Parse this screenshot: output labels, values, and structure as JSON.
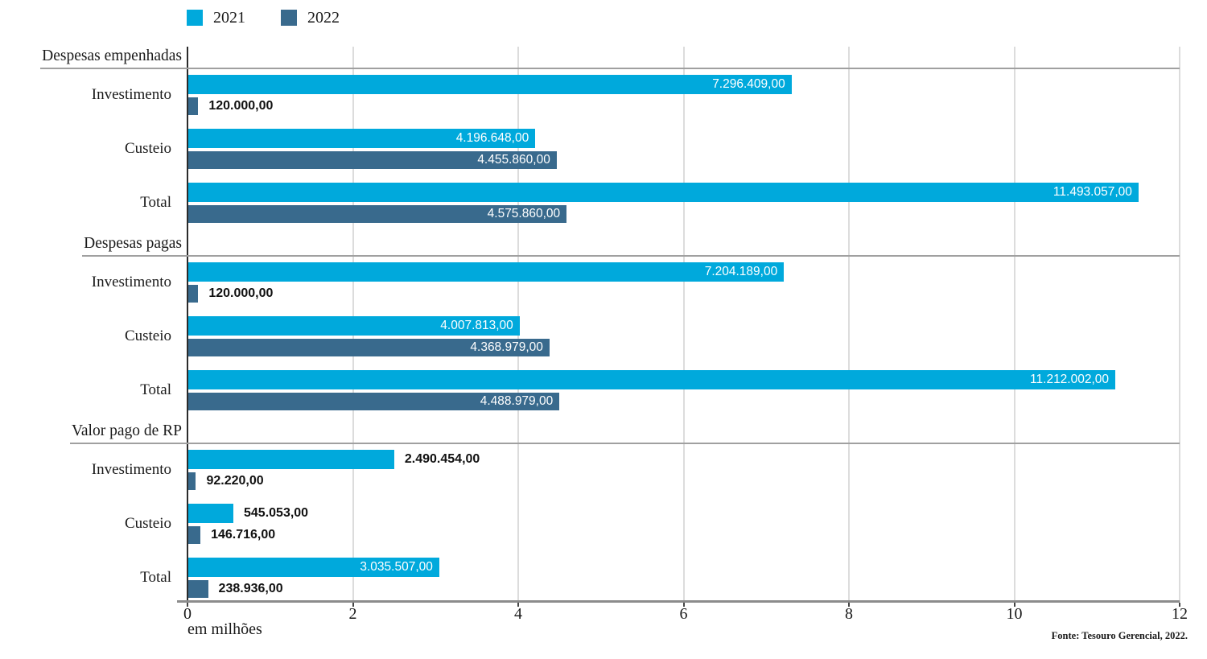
{
  "chart_data": {
    "type": "bar",
    "orientation": "horizontal",
    "legend_position": "top",
    "grid": true,
    "series": [
      {
        "name": "2021",
        "color": "#00A9DC"
      },
      {
        "name": "2022",
        "color": "#396A8D"
      }
    ],
    "x_axis": {
      "label": "em milhões",
      "ticks": [
        "0",
        "2",
        "4",
        "6",
        "8",
        "10",
        "12"
      ],
      "min": 0,
      "max": 12,
      "unit": "milhões"
    },
    "groups": [
      {
        "title": "Despesas empenhadas",
        "rows": [
          {
            "category": "Investimento",
            "values": [
              7296409,
              120000
            ],
            "labels": [
              "7.296.409,00",
              "120.000,00"
            ],
            "label_inside": [
              true,
              false
            ]
          },
          {
            "category": "Custeio",
            "values": [
              4196648,
              4455860
            ],
            "labels": [
              "4.196.648,00",
              "4.455.860,00"
            ],
            "label_inside": [
              true,
              true
            ]
          },
          {
            "category": "Total",
            "values": [
              11493057,
              4575860
            ],
            "labels": [
              "11.493.057,00",
              "4.575.860,00"
            ],
            "label_inside": [
              true,
              true
            ]
          }
        ]
      },
      {
        "title": "Despesas pagas",
        "rows": [
          {
            "category": "Investimento",
            "values": [
              7204189,
              120000
            ],
            "labels": [
              "7.204.189,00",
              "120.000,00"
            ],
            "label_inside": [
              true,
              false
            ]
          },
          {
            "category": "Custeio",
            "values": [
              4007813,
              4368979
            ],
            "labels": [
              "4.007.813,00",
              "4.368.979,00"
            ],
            "label_inside": [
              true,
              true
            ]
          },
          {
            "category": "Total",
            "values": [
              11212002,
              4488979
            ],
            "labels": [
              "11.212.002,00",
              "4.488.979,00"
            ],
            "label_inside": [
              true,
              true
            ]
          }
        ]
      },
      {
        "title": "Valor pago de RP",
        "rows": [
          {
            "category": "Investimento",
            "values": [
              2490454,
              92220
            ],
            "labels": [
              "2.490.454,00",
              "92.220,00"
            ],
            "label_inside": [
              false,
              false
            ]
          },
          {
            "category": "Custeio",
            "values": [
              545053,
              146716
            ],
            "labels": [
              "545.053,00",
              "146.716,00"
            ],
            "label_inside": [
              false,
              false
            ]
          },
          {
            "category": "Total",
            "values": [
              3035507,
              238936
            ],
            "labels": [
              "3.035.507,00",
              "238.936,00"
            ],
            "label_inside": [
              true,
              false
            ]
          }
        ]
      }
    ],
    "source": "Fonte: Tesouro Gerencial, 2022."
  }
}
